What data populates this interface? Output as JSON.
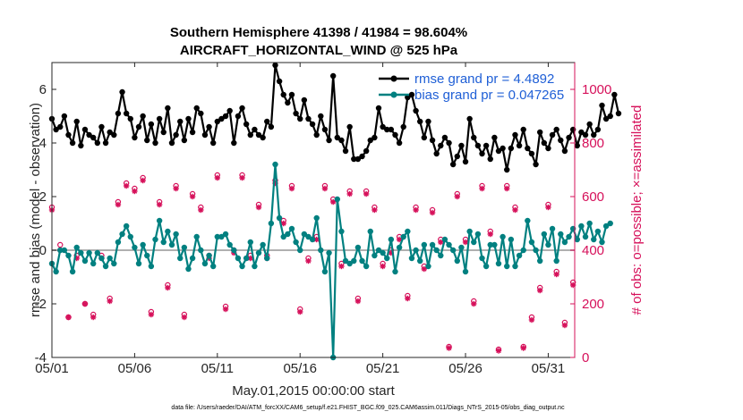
{
  "chart_data": {
    "type": "line",
    "title": "Southern Hemisphere 41398 / 41984 = 98.604%",
    "subtitle": "AIRCRAFT_HORIZONTAL_WIND @ 525 hPa",
    "xlabel": "May.01,2015 00:00:00 start",
    "ylabel": "rmse and bias (model - observation)",
    "y2label": "# of obs: o=possible; ×=assimilated",
    "footnote": "data file: /Users/raeder/DAI/ATM_forcXX/CAM6_setup/f.e21.FHIST_BGC.f09_025.CAM6assim.011/Diags_NTrS_2015-05/obs_diag_output.nc",
    "xlim": [
      0,
      31.6
    ],
    "ylim": [
      -4,
      7
    ],
    "y2lim": [
      0,
      1100
    ],
    "x_ticks": [
      0,
      5,
      10,
      15,
      20,
      25,
      30
    ],
    "x_tick_labels": [
      "05/01",
      "05/06",
      "05/11",
      "05/16",
      "05/21",
      "05/26",
      "05/31"
    ],
    "y_ticks": [
      -4,
      -2,
      0,
      2,
      4,
      6
    ],
    "y2_ticks": [
      0,
      200,
      400,
      600,
      800,
      1000
    ],
    "legend_position": "top-right",
    "colors": {
      "rmse": "#000000",
      "bias": "#008080",
      "obs": "#d6105a",
      "zero_line": "#b0b0b0",
      "legend_text": "#1f5fd6"
    },
    "series": [
      {
        "name": "rmse grand pr = 4.4892",
        "axis": "left",
        "x_step": 0.25,
        "values": [
          4.9,
          4.5,
          4.6,
          5.0,
          4.3,
          4.0,
          4.8,
          3.9,
          4.5,
          4.3,
          4.2,
          4.0,
          4.6,
          4.0,
          4.4,
          4.3,
          5.1,
          5.9,
          5.1,
          4.9,
          4.2,
          4.6,
          5.0,
          4.1,
          4.7,
          4.0,
          4.9,
          4.4,
          5.3,
          4.0,
          4.3,
          4.8,
          4.1,
          4.9,
          4.4,
          5.3,
          5.1,
          4.3,
          4.6,
          4.0,
          4.8,
          4.9,
          5.0,
          5.2,
          4.0,
          5.0,
          5.3,
          4.7,
          4.3,
          4.5,
          4.3,
          4.2,
          4.8,
          4.6,
          6.9,
          6.3,
          5.8,
          5.5,
          5.8,
          5.1,
          4.9,
          5.6,
          4.9,
          4.7,
          4.3,
          5.0,
          4.5,
          4.1,
          6.5,
          4.2,
          4.1,
          3.7,
          4.6,
          3.4,
          3.4,
          3.5,
          3.7,
          4.1,
          4.2,
          5.3,
          4.6,
          4.5,
          4.5,
          4.3,
          4.0,
          4.6,
          5.7,
          5.8,
          5.2,
          4.8,
          4.2,
          4.8,
          4.1,
          3.6,
          3.9,
          4.2,
          4.0,
          3.2,
          3.5,
          3.9,
          3.3,
          4.9,
          4.2,
          3.9,
          3.6,
          3.9,
          3.4,
          4.2,
          3.7,
          3.8,
          3.0,
          3.8,
          4.3,
          3.9,
          4.5,
          3.8,
          3.6,
          3.2,
          4.4,
          4.0,
          3.8,
          4.3,
          4.5,
          4.1,
          3.7,
          4.2,
          4.5,
          3.9,
          4.4,
          4.3,
          4.7,
          4.3,
          4.5,
          5.4,
          4.9,
          5.0,
          5.8,
          5.1
        ]
      },
      {
        "name": "bias grand pr = 0.047265",
        "axis": "left",
        "x_step": 0.25,
        "values": [
          -0.5,
          -0.8,
          0.0,
          0.0,
          -0.2,
          -0.8,
          0.1,
          -0.1,
          -0.4,
          -0.1,
          -0.5,
          -0.1,
          -0.3,
          -0.6,
          -0.3,
          -0.5,
          0.3,
          0.6,
          0.9,
          0.5,
          0.1,
          -0.5,
          0.2,
          -0.2,
          -0.6,
          0.4,
          1.1,
          0.3,
          0.7,
          0.2,
          0.6,
          -0.3,
          0.1,
          -0.7,
          -0.3,
          0.5,
          0.0,
          -0.5,
          -0.2,
          -0.6,
          0.5,
          0.5,
          0.6,
          0.2,
          0.0,
          -0.3,
          -0.6,
          -0.3,
          0.3,
          -0.6,
          -0.1,
          0.2,
          -0.3,
          1.0,
          3.2,
          1.2,
          0.5,
          0.6,
          0.8,
          0.3,
          0.0,
          0.6,
          0.5,
          0.4,
          1.2,
          0.0,
          -0.8,
          -0.1,
          -4.0,
          1.9,
          0.7,
          -0.4,
          -0.5,
          -0.4,
          0.1,
          -0.4,
          -0.6,
          0.7,
          -0.2,
          0.0,
          -0.1,
          -0.3,
          0.4,
          -0.8,
          0.1,
          0.5,
          0.7,
          -0.3,
          0.0,
          -0.4,
          0.2,
          -0.6,
          0.2,
          0.0,
          -0.2,
          0.4,
          0.2,
          0.0,
          -0.4,
          0.1,
          -0.8,
          0.7,
          0.3,
          0.6,
          -0.3,
          -0.6,
          0.2,
          0.2,
          -0.5,
          0.5,
          -0.6,
          0.4,
          -0.6,
          -0.2,
          0.0,
          1.1,
          0.3,
          0.0,
          -0.4,
          0.6,
          0.2,
          0.8,
          -0.4,
          0.6,
          0.3,
          0.5,
          0.8,
          0.4,
          0.9,
          0.5,
          1.0,
          0.4,
          0.7,
          0.3,
          0.9,
          1.0
        ]
      },
      {
        "name": "obs possible",
        "axis": "right",
        "marker": "o",
        "x_step": 0.5,
        "values": [
          560,
          420,
          150,
          380,
          200,
          160,
          380,
          220,
          580,
          650,
          630,
          670,
          170,
          580,
          270,
          640,
          160,
          610,
          560,
          380,
          680,
          190,
          400,
          680,
          380,
          570,
          380,
          660,
          510,
          640,
          180,
          370,
          450,
          640,
          590,
          350,
          620,
          220,
          620,
          560,
          350,
          400,
          450,
          230,
          560,
          340,
          550,
          440,
          40,
          610,
          440,
          210,
          640,
          470,
          30,
          640,
          560,
          40,
          150,
          260,
          570,
          320,
          130,
          280
        ]
      },
      {
        "name": "obs assimilated",
        "axis": "right",
        "marker": "*",
        "x_step": 0.5,
        "values": [
          550,
          400,
          150,
          370,
          200,
          150,
          370,
          210,
          570,
          640,
          620,
          660,
          160,
          570,
          260,
          630,
          150,
          600,
          550,
          370,
          670,
          180,
          390,
          670,
          370,
          560,
          370,
          650,
          500,
          630,
          170,
          360,
          440,
          630,
          580,
          340,
          610,
          210,
          610,
          550,
          340,
          390,
          440,
          220,
          550,
          330,
          540,
          430,
          35,
          600,
          430,
          200,
          630,
          460,
          25,
          630,
          550,
          35,
          140,
          250,
          560,
          310,
          120,
          270
        ]
      }
    ]
  }
}
